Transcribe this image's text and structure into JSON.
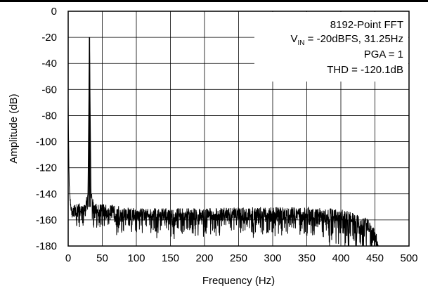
{
  "chart_data": {
    "type": "line",
    "xlabel": "Frequency (Hz)",
    "ylabel": "Amplitude (dB)",
    "xlim": [
      0,
      500
    ],
    "ylim": [
      -180,
      0
    ],
    "xticks": [
      0,
      50,
      100,
      150,
      200,
      250,
      300,
      350,
      400,
      450,
      500
    ],
    "yticks": [
      0,
      -20,
      -40,
      -60,
      -80,
      -100,
      -120,
      -140,
      -160,
      -180
    ],
    "grid": true,
    "annotations": {
      "line1": "8192-Point FFT",
      "line2_prefix": "V",
      "line2_sub": "IN",
      "line2_rest": " = -20dBFS, 31.25Hz",
      "line3": "PGA = 1",
      "line4": "THD = -120.1dB"
    },
    "series": [
      {
        "color": "#000000",
        "description_points": [
          {
            "x": 0,
            "y": -70
          },
          {
            "x": 1,
            "y": -120
          },
          {
            "x": 2,
            "y": -140
          },
          {
            "x": 5,
            "y": -155
          },
          {
            "x": 25,
            "y": -152
          },
          {
            "x": 29,
            "y": -140
          },
          {
            "x": 31.25,
            "y": -20
          },
          {
            "x": 33.5,
            "y": -140
          },
          {
            "x": 38,
            "y": -153
          },
          {
            "x": 100,
            "y": -157
          },
          {
            "x": 200,
            "y": -157
          },
          {
            "x": 300,
            "y": -156
          },
          {
            "x": 400,
            "y": -157
          },
          {
            "x": 440,
            "y": -165
          },
          {
            "x": 455,
            "y": -178
          },
          {
            "x": 500,
            "y": -180
          }
        ]
      }
    ]
  }
}
